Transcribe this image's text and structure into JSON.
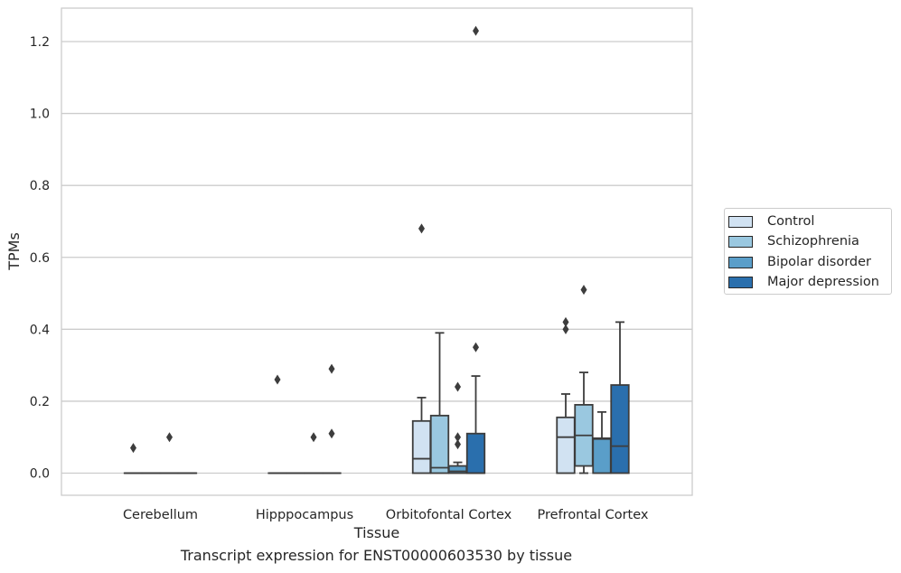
{
  "caption": "Transcript expression for ENST00000603530 by tissue",
  "chart_data": {
    "type": "boxplot",
    "xlabel": "Tissue",
    "ylabel": "TPMs",
    "ylim": [
      -0.06,
      1.29
    ],
    "yticks": [
      0.0,
      0.2,
      0.4,
      0.6,
      0.8,
      1.0,
      1.2
    ],
    "ytick_labels": [
      "0.0",
      "0.2",
      "0.4",
      "0.6",
      "0.8",
      "1.0",
      "1.2"
    ],
    "grid": "horizontal",
    "legend_position": "right",
    "categories": [
      "Cerebellum",
      "Hipppocampus",
      "Orbitofontal Cortex",
      "Prefrontal Cortex"
    ],
    "series": [
      {
        "name": "Control",
        "color": "#d1e2f2",
        "boxes": [
          {
            "whislo": 0,
            "q1": 0,
            "med": 0,
            "q3": 0,
            "whishi": 0,
            "fliers": [
              0.07
            ]
          },
          {
            "whislo": 0,
            "q1": 0,
            "med": 0,
            "q3": 0,
            "whishi": 0,
            "fliers": [
              0.26
            ]
          },
          {
            "whislo": 0,
            "q1": 0,
            "med": 0.04,
            "q3": 0.145,
            "whishi": 0.21,
            "fliers": [
              0.68
            ]
          },
          {
            "whislo": 0,
            "q1": 0,
            "med": 0.1,
            "q3": 0.155,
            "whishi": 0.22,
            "fliers": [
              0.4,
              0.42
            ]
          }
        ]
      },
      {
        "name": "Schizophrenia",
        "color": "#9ac8e0",
        "boxes": [
          {
            "whislo": 0,
            "q1": 0,
            "med": 0,
            "q3": 0,
            "whishi": 0,
            "fliers": []
          },
          {
            "whislo": 0,
            "q1": 0,
            "med": 0,
            "q3": 0,
            "whishi": 0,
            "fliers": []
          },
          {
            "whislo": 0,
            "q1": 0,
            "med": 0.015,
            "q3": 0.16,
            "whishi": 0.39,
            "fliers": []
          },
          {
            "whislo": 0,
            "q1": 0.02,
            "med": 0.105,
            "q3": 0.19,
            "whishi": 0.28,
            "fliers": [
              0.51
            ]
          }
        ]
      },
      {
        "name": "Bipolar disorder",
        "color": "#5a9ec9",
        "boxes": [
          {
            "whislo": 0,
            "q1": 0,
            "med": 0,
            "q3": 0,
            "whishi": 0,
            "fliers": [
              0.1
            ]
          },
          {
            "whislo": 0,
            "q1": 0,
            "med": 0,
            "q3": 0,
            "whishi": 0,
            "fliers": [
              0.1
            ]
          },
          {
            "whislo": 0,
            "q1": 0,
            "med": 0.005,
            "q3": 0.02,
            "whishi": 0.03,
            "fliers": [
              0.08,
              0.1,
              0.24
            ]
          },
          {
            "whislo": 0,
            "q1": 0,
            "med": 0.095,
            "q3": 0.097,
            "whishi": 0.17,
            "fliers": []
          }
        ]
      },
      {
        "name": "Major depression",
        "color": "#2a6fad",
        "boxes": [
          {
            "whislo": 0,
            "q1": 0,
            "med": 0,
            "q3": 0,
            "whishi": 0,
            "fliers": []
          },
          {
            "whislo": 0,
            "q1": 0,
            "med": 0,
            "q3": 0,
            "whishi": 0,
            "fliers": [
              0.11,
              0.29
            ]
          },
          {
            "whislo": 0,
            "q1": 0,
            "med": 0,
            "q3": 0.11,
            "whishi": 0.27,
            "fliers": [
              0.35,
              1.23
            ]
          },
          {
            "whislo": 0,
            "q1": 0,
            "med": 0.075,
            "q3": 0.245,
            "whishi": 0.42,
            "fliers": []
          }
        ]
      }
    ]
  }
}
